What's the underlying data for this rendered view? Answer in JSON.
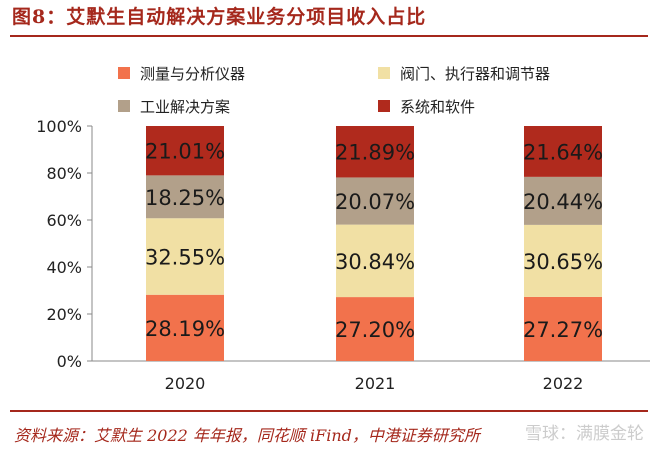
{
  "header": {
    "title": "图8：艾默生自动解决方案业务分项目收入占比"
  },
  "footer": {
    "source": "资料来源：艾默生 2022 年年报，同花顺 iFind，中港证券研究所",
    "watermark": "雪球：满膜金轮"
  },
  "chart_data": {
    "type": "bar",
    "stacked": true,
    "categories": [
      "2020",
      "2021",
      "2022"
    ],
    "series": [
      {
        "name": "测量与分析仪器",
        "color": "#f2724c",
        "values": [
          28.19,
          27.2,
          27.27
        ],
        "labels": [
          "28.19%",
          "27.20%",
          "27.27%"
        ]
      },
      {
        "name": "阀门、执行器和调节器",
        "color": "#f1e0a4",
        "values": [
          32.55,
          30.84,
          30.65
        ],
        "labels": [
          "32.55%",
          "30.84%",
          "30.65%"
        ]
      },
      {
        "name": "工业解决方案",
        "color": "#b2a08a",
        "values": [
          18.25,
          20.07,
          20.44
        ],
        "labels": [
          "18.25%",
          "20.07%",
          "20.44%"
        ]
      },
      {
        "name": "系统和软件",
        "color": "#b02a1d",
        "values": [
          21.01,
          21.89,
          21.64
        ],
        "labels": [
          "21.01%",
          "21.89%",
          "21.64%"
        ]
      }
    ],
    "ylim": [
      0,
      100
    ],
    "yticks": [
      "0%",
      "20%",
      "40%",
      "60%",
      "80%",
      "100%"
    ],
    "legend_position": "top",
    "grid": false
  }
}
